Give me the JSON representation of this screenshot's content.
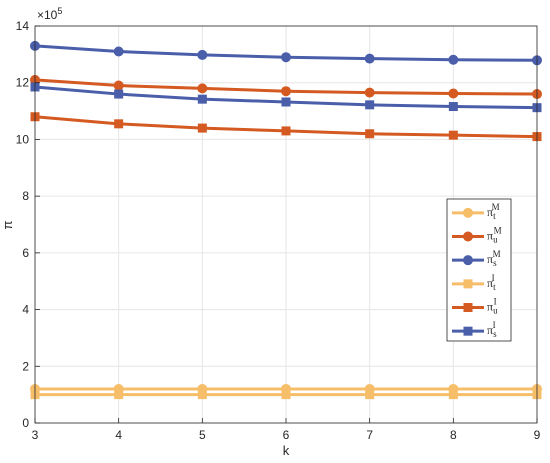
{
  "chart_data": {
    "type": "line",
    "xlabel": "k",
    "ylabel": "π",
    "exponent_label": "×10",
    "exponent_power": "5",
    "xlim": [
      3,
      9
    ],
    "ylim": [
      0,
      14
    ],
    "x_ticks": [
      3,
      4,
      5,
      6,
      7,
      8,
      9
    ],
    "y_ticks": [
      0,
      2,
      4,
      6,
      8,
      10,
      12,
      14
    ],
    "grid": true,
    "legend_position": "right-center",
    "x": [
      3,
      4,
      5,
      6,
      7,
      8,
      9
    ],
    "series": [
      {
        "name": "π_t^M",
        "base": "π",
        "sub": "t",
        "sup": "M",
        "color": "#F7BE6A",
        "marker": "circle",
        "values": [
          1.2,
          1.2,
          1.2,
          1.2,
          1.2,
          1.2,
          1.2
        ]
      },
      {
        "name": "π_u^M",
        "base": "π",
        "sub": "u",
        "sup": "M",
        "color": "#D45A22",
        "marker": "circle",
        "values": [
          12.1,
          11.9,
          11.8,
          11.7,
          11.65,
          11.62,
          11.6
        ]
      },
      {
        "name": "π_s^M",
        "base": "π",
        "sub": "s",
        "sup": "M",
        "color": "#4A5EAA",
        "marker": "circle",
        "values": [
          13.3,
          13.1,
          12.98,
          12.9,
          12.85,
          12.81,
          12.79
        ]
      },
      {
        "name": "π_t^I",
        "base": "π",
        "sub": "t",
        "sup": "I",
        "color": "#F7BE6A",
        "marker": "square",
        "values": [
          1.0,
          1.0,
          1.0,
          1.0,
          1.0,
          1.0,
          1.0
        ]
      },
      {
        "name": "π_u^I",
        "base": "π",
        "sub": "u",
        "sup": "I",
        "color": "#D45A22",
        "marker": "square",
        "values": [
          10.8,
          10.55,
          10.4,
          10.3,
          10.2,
          10.15,
          10.1
        ]
      },
      {
        "name": "π_s^I",
        "base": "π",
        "sub": "s",
        "sup": "I",
        "color": "#4A5EAA",
        "marker": "square",
        "values": [
          11.85,
          11.6,
          11.42,
          11.32,
          11.22,
          11.16,
          11.12
        ]
      }
    ]
  }
}
